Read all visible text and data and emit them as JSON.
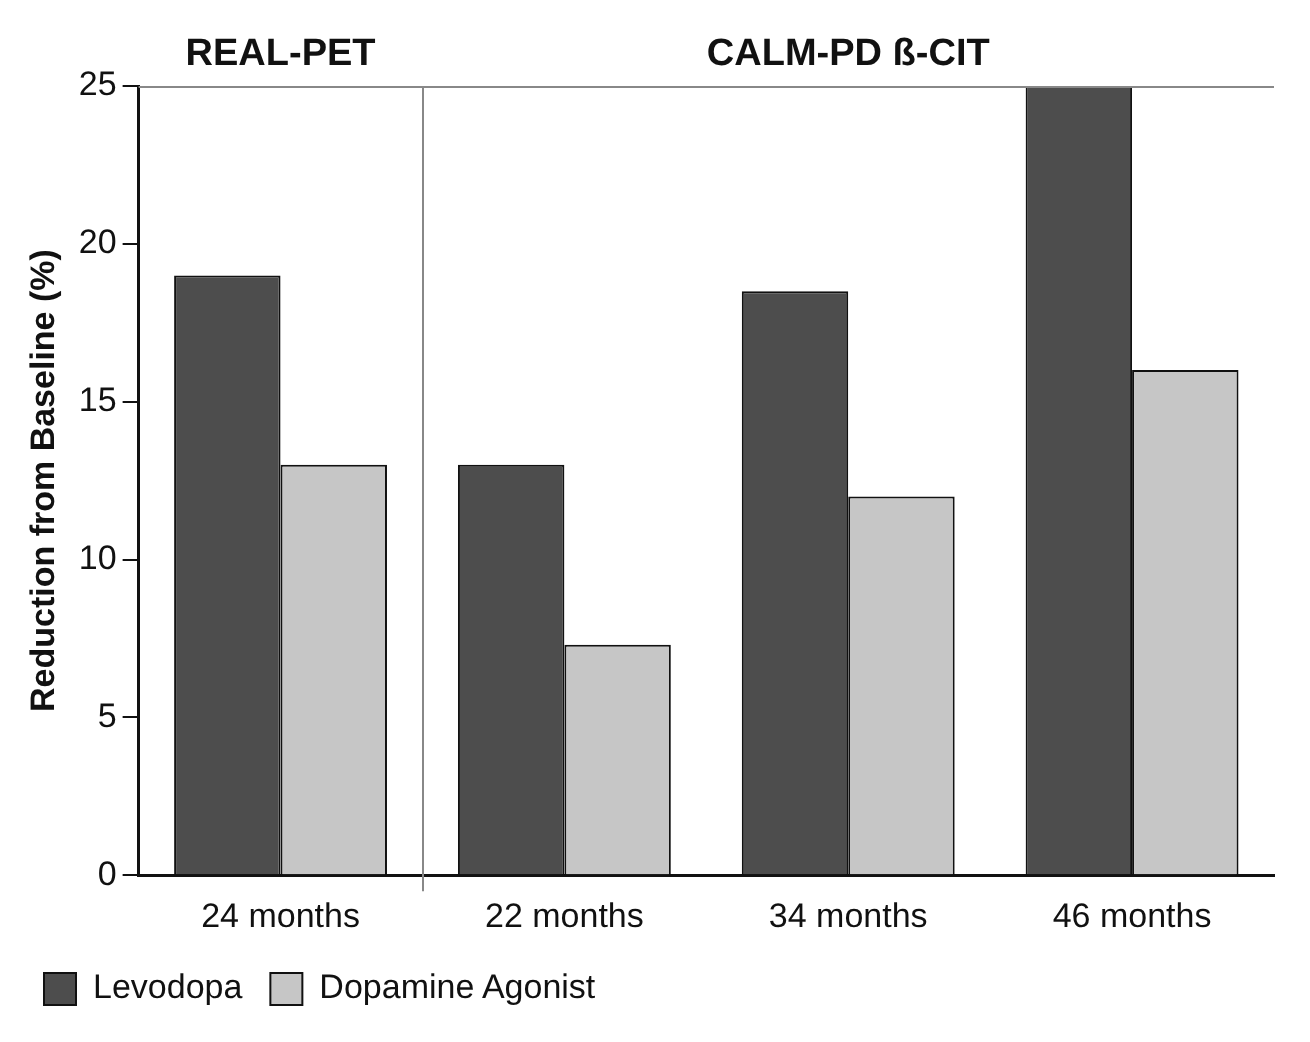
{
  "chart_data": {
    "type": "bar",
    "ylabel": "Reduction from Baseline (%)",
    "annotations": [
      "REAL-PET",
      "CALM-PD ß-CIT"
    ],
    "categories": [
      "24 months",
      "22 months",
      "34 months",
      "46 months"
    ],
    "series": [
      {
        "name": "Levodopa",
        "color": "#4d4d4d",
        "values": [
          19,
          13,
          18.5,
          25
        ]
      },
      {
        "name": "Dopamine Agonist",
        "color": "#c6c6c6",
        "values": [
          13,
          7.3,
          12,
          16
        ]
      }
    ],
    "ylim": [
      0,
      25
    ],
    "yticks": [
      0,
      5,
      10,
      15,
      20,
      25
    ],
    "grid": false,
    "legend": "bottom left"
  }
}
